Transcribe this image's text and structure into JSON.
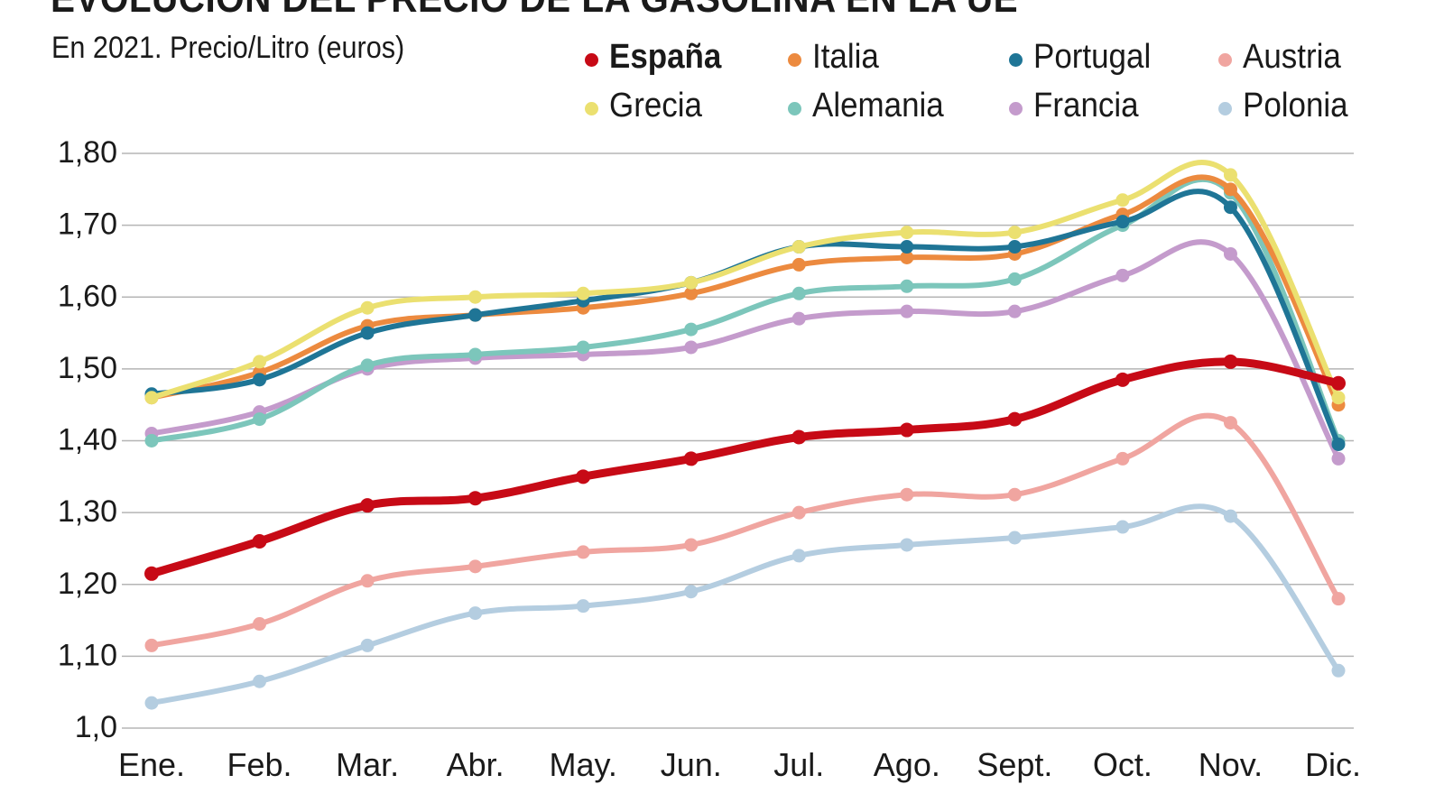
{
  "chart_data": {
    "type": "line",
    "title": "EVOLUCIÓN DEL PRECIO DE LA GASOLINA EN LA UE",
    "subtitle": "En 2021. Precio/Litro (euros)",
    "xlabel": "",
    "ylabel": "",
    "ylim": [
      1.0,
      1.8
    ],
    "grid": true,
    "legend_position": "top-right",
    "categories": [
      "Ene.",
      "Feb.",
      "Mar.",
      "Abr.",
      "May.",
      "Jun.",
      "Jul.",
      "Ago.",
      "Sept.",
      "Oct.",
      "Nov.",
      "Dic."
    ],
    "y_ticks": [
      {
        "value": 1.8,
        "label": "1,80"
      },
      {
        "value": 1.7,
        "label": "1,70"
      },
      {
        "value": 1.6,
        "label": "1,60"
      },
      {
        "value": 1.5,
        "label": "1,50"
      },
      {
        "value": 1.4,
        "label": "1,40"
      },
      {
        "value": 1.3,
        "label": "1,30"
      },
      {
        "value": 1.2,
        "label": "1,20"
      },
      {
        "value": 1.1,
        "label": "1,10"
      },
      {
        "value": 1.0,
        "label": "1,0"
      }
    ],
    "series": [
      {
        "name": "Polonia",
        "color": "#b4cde0",
        "emphasis": false,
        "values": [
          1.035,
          1.065,
          1.115,
          1.16,
          1.17,
          1.19,
          1.24,
          1.255,
          1.265,
          1.28,
          1.295,
          1.08
        ]
      },
      {
        "name": "Austria",
        "color": "#f0a5a0",
        "emphasis": false,
        "values": [
          1.115,
          1.145,
          1.205,
          1.225,
          1.245,
          1.255,
          1.3,
          1.325,
          1.325,
          1.375,
          1.425,
          1.18
        ]
      },
      {
        "name": "Francia",
        "color": "#c49bcc",
        "emphasis": false,
        "values": [
          1.41,
          1.44,
          1.5,
          1.515,
          1.52,
          1.53,
          1.57,
          1.58,
          1.58,
          1.63,
          1.66,
          1.375
        ]
      },
      {
        "name": "Alemania",
        "color": "#7cc6bb",
        "emphasis": false,
        "values": [
          1.4,
          1.43,
          1.505,
          1.52,
          1.53,
          1.555,
          1.605,
          1.615,
          1.625,
          1.7,
          1.745,
          1.4
        ]
      },
      {
        "name": "Italia",
        "color": "#ec8a3f",
        "emphasis": false,
        "values": [
          1.46,
          1.495,
          1.56,
          1.575,
          1.585,
          1.605,
          1.645,
          1.655,
          1.66,
          1.715,
          1.75,
          1.45
        ]
      },
      {
        "name": "Portugal",
        "color": "#1f7596",
        "emphasis": false,
        "values": [
          1.465,
          1.485,
          1.55,
          1.575,
          1.595,
          1.62,
          1.67,
          1.67,
          1.67,
          1.705,
          1.725,
          1.395
        ]
      },
      {
        "name": "Grecia",
        "color": "#ebe070",
        "emphasis": false,
        "values": [
          1.46,
          1.51,
          1.585,
          1.6,
          1.605,
          1.62,
          1.67,
          1.69,
          1.69,
          1.735,
          1.77,
          1.46
        ]
      },
      {
        "name": "España",
        "color": "#c70a16",
        "emphasis": true,
        "values": [
          1.215,
          1.26,
          1.31,
          1.32,
          1.35,
          1.375,
          1.405,
          1.415,
          1.43,
          1.485,
          1.51,
          1.48
        ]
      }
    ],
    "legend": [
      {
        "name": "España",
        "color": "#c70a16",
        "bold": true
      },
      {
        "name": "Italia",
        "color": "#ec8a3f",
        "bold": false
      },
      {
        "name": "Portugal",
        "color": "#1f7596",
        "bold": false
      },
      {
        "name": "Austria",
        "color": "#f0a5a0",
        "bold": false
      },
      {
        "name": "Grecia",
        "color": "#ebe070",
        "bold": false
      },
      {
        "name": "Alemania",
        "color": "#7cc6bb",
        "bold": false
      },
      {
        "name": "Francia",
        "color": "#c49bcc",
        "bold": false
      },
      {
        "name": "Polonia",
        "color": "#b4cde0",
        "bold": false
      }
    ]
  }
}
